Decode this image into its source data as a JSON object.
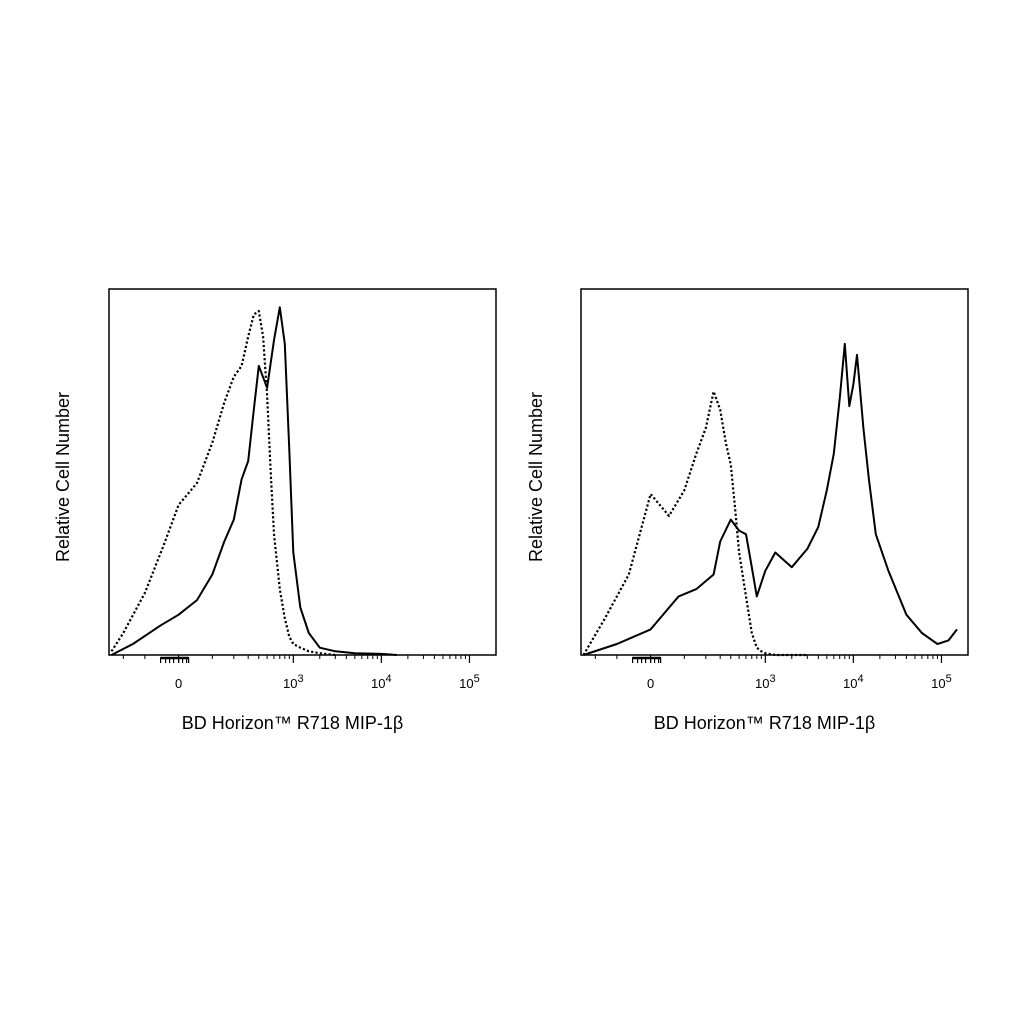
{
  "chart_data": [
    {
      "type": "line",
      "title": "",
      "xlabel": "BD Horizon™ R718  MIP-1β",
      "ylabel": "Relative Cell Number",
      "x_scale": "biexponential",
      "xlim": [
        -300,
        200000
      ],
      "ylim": [
        0,
        1.0
      ],
      "x_ticks": [
        {
          "base": "0",
          "exp": "",
          "value": 0
        },
        {
          "base": "10",
          "exp": "3",
          "value": 1000
        },
        {
          "base": "10",
          "exp": "4",
          "value": 10000
        },
        {
          "base": "10",
          "exp": "5",
          "value": 100000
        }
      ],
      "legend": "none",
      "grid": false,
      "series": [
        {
          "style": "dotted",
          "x": [
            -280,
            -200,
            -100,
            -40,
            0,
            50,
            100,
            150,
            200,
            250,
            300,
            350,
            400,
            450,
            500,
            550,
            600,
            700,
            800,
            900,
            1000,
            1200,
            1500,
            2000,
            3000
          ],
          "y": [
            0.01,
            0.06,
            0.17,
            0.3,
            0.41,
            0.47,
            0.58,
            0.69,
            0.76,
            0.79,
            0.87,
            0.93,
            0.94,
            0.87,
            0.71,
            0.5,
            0.33,
            0.18,
            0.1,
            0.05,
            0.03,
            0.02,
            0.01,
            0.005,
            0.0
          ]
        },
        {
          "style": "solid",
          "x": [
            -280,
            -150,
            -50,
            0,
            50,
            100,
            150,
            200,
            250,
            300,
            350,
            400,
            500,
            600,
            700,
            800,
            900,
            1000,
            1200,
            1500,
            2000,
            3000,
            5000,
            10000,
            15000
          ],
          "y": [
            0.0,
            0.03,
            0.08,
            0.11,
            0.15,
            0.22,
            0.31,
            0.37,
            0.48,
            0.53,
            0.67,
            0.79,
            0.73,
            0.86,
            0.95,
            0.85,
            0.56,
            0.28,
            0.13,
            0.06,
            0.02,
            0.01,
            0.005,
            0.003,
            0.0
          ]
        }
      ]
    },
    {
      "type": "line",
      "title": "",
      "xlabel": "BD Horizon™ R718  MIP-1β",
      "ylabel": "Relative Cell Number",
      "x_scale": "biexponential",
      "xlim": [
        -300,
        200000
      ],
      "ylim": [
        0,
        1.0
      ],
      "x_ticks": [
        {
          "base": "0",
          "exp": "",
          "value": 0
        },
        {
          "base": "10",
          "exp": "3",
          "value": 1000
        },
        {
          "base": "10",
          "exp": "4",
          "value": 10000
        },
        {
          "base": "10",
          "exp": "5",
          "value": 100000
        }
      ],
      "legend": "none",
      "grid": false,
      "series": [
        {
          "style": "dotted",
          "x": [
            -280,
            -150,
            -60,
            0,
            50,
            100,
            150,
            200,
            250,
            300,
            350,
            400,
            450,
            500,
            600,
            700,
            800,
            900,
            1000,
            1300,
            2000,
            3000
          ],
          "y": [
            0.0,
            0.1,
            0.22,
            0.44,
            0.38,
            0.45,
            0.55,
            0.62,
            0.72,
            0.67,
            0.58,
            0.52,
            0.4,
            0.28,
            0.16,
            0.06,
            0.02,
            0.01,
            0.005,
            0.0,
            0.0,
            0.0
          ]
        },
        {
          "style": "solid",
          "x": [
            -280,
            -100,
            0,
            80,
            150,
            250,
            300,
            400,
            500,
            600,
            700,
            800,
            1000,
            1300,
            2000,
            3000,
            4000,
            5000,
            6000,
            7000,
            8000,
            9000,
            10000,
            11000,
            13000,
            15000,
            18000,
            25000,
            40000,
            60000,
            90000,
            120000,
            150000
          ],
          "y": [
            0.0,
            0.03,
            0.07,
            0.16,
            0.18,
            0.22,
            0.31,
            0.37,
            0.34,
            0.33,
            0.24,
            0.16,
            0.23,
            0.28,
            0.24,
            0.29,
            0.35,
            0.45,
            0.55,
            0.7,
            0.85,
            0.68,
            0.74,
            0.82,
            0.62,
            0.48,
            0.33,
            0.23,
            0.11,
            0.06,
            0.03,
            0.04,
            0.07
          ]
        }
      ]
    }
  ]
}
